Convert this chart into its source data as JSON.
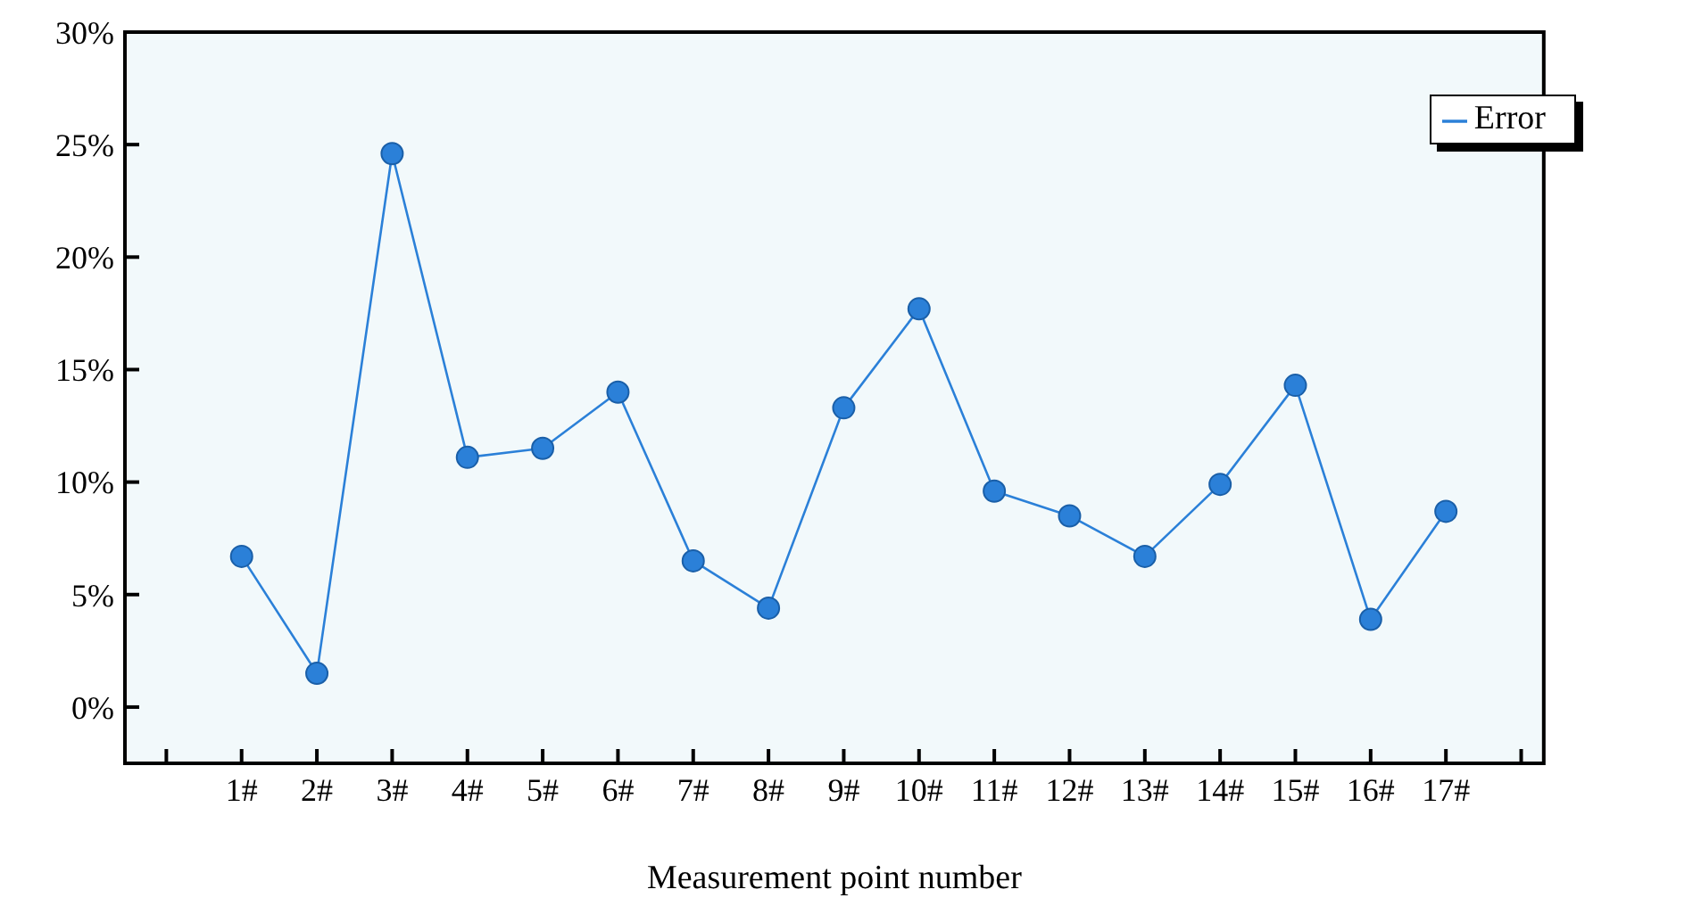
{
  "chart_data": {
    "type": "line",
    "xlabel": "Measurement point number",
    "categories": [
      null,
      "1#",
      "2#",
      "3#",
      "4#",
      "5#",
      "6#",
      "7#",
      "8#",
      "9#",
      "10#",
      "11#",
      "12#",
      "13#",
      "14#",
      "15#",
      "16#",
      "17#",
      null
    ],
    "series": [
      {
        "name": "Error",
        "color": "#2b80d8",
        "values": [
          null,
          6.7,
          1.5,
          24.6,
          11.1,
          11.5,
          14.0,
          6.5,
          4.4,
          13.3,
          17.7,
          9.6,
          8.5,
          6.7,
          9.9,
          14.3,
          3.9,
          8.7,
          null
        ]
      }
    ],
    "ylim": [
      -2.5,
      30
    ],
    "yticks": [
      {
        "value": 0,
        "label": "0%"
      },
      {
        "value": 5,
        "label": "5%"
      },
      {
        "value": 10,
        "label": "10%"
      },
      {
        "value": 15,
        "label": "15%"
      },
      {
        "value": 20,
        "label": "20%"
      },
      {
        "value": 25,
        "label": "25%"
      },
      {
        "value": 30,
        "label": "30%"
      }
    ],
    "legend": "top right",
    "marker": "circle",
    "line_style": "solid"
  }
}
